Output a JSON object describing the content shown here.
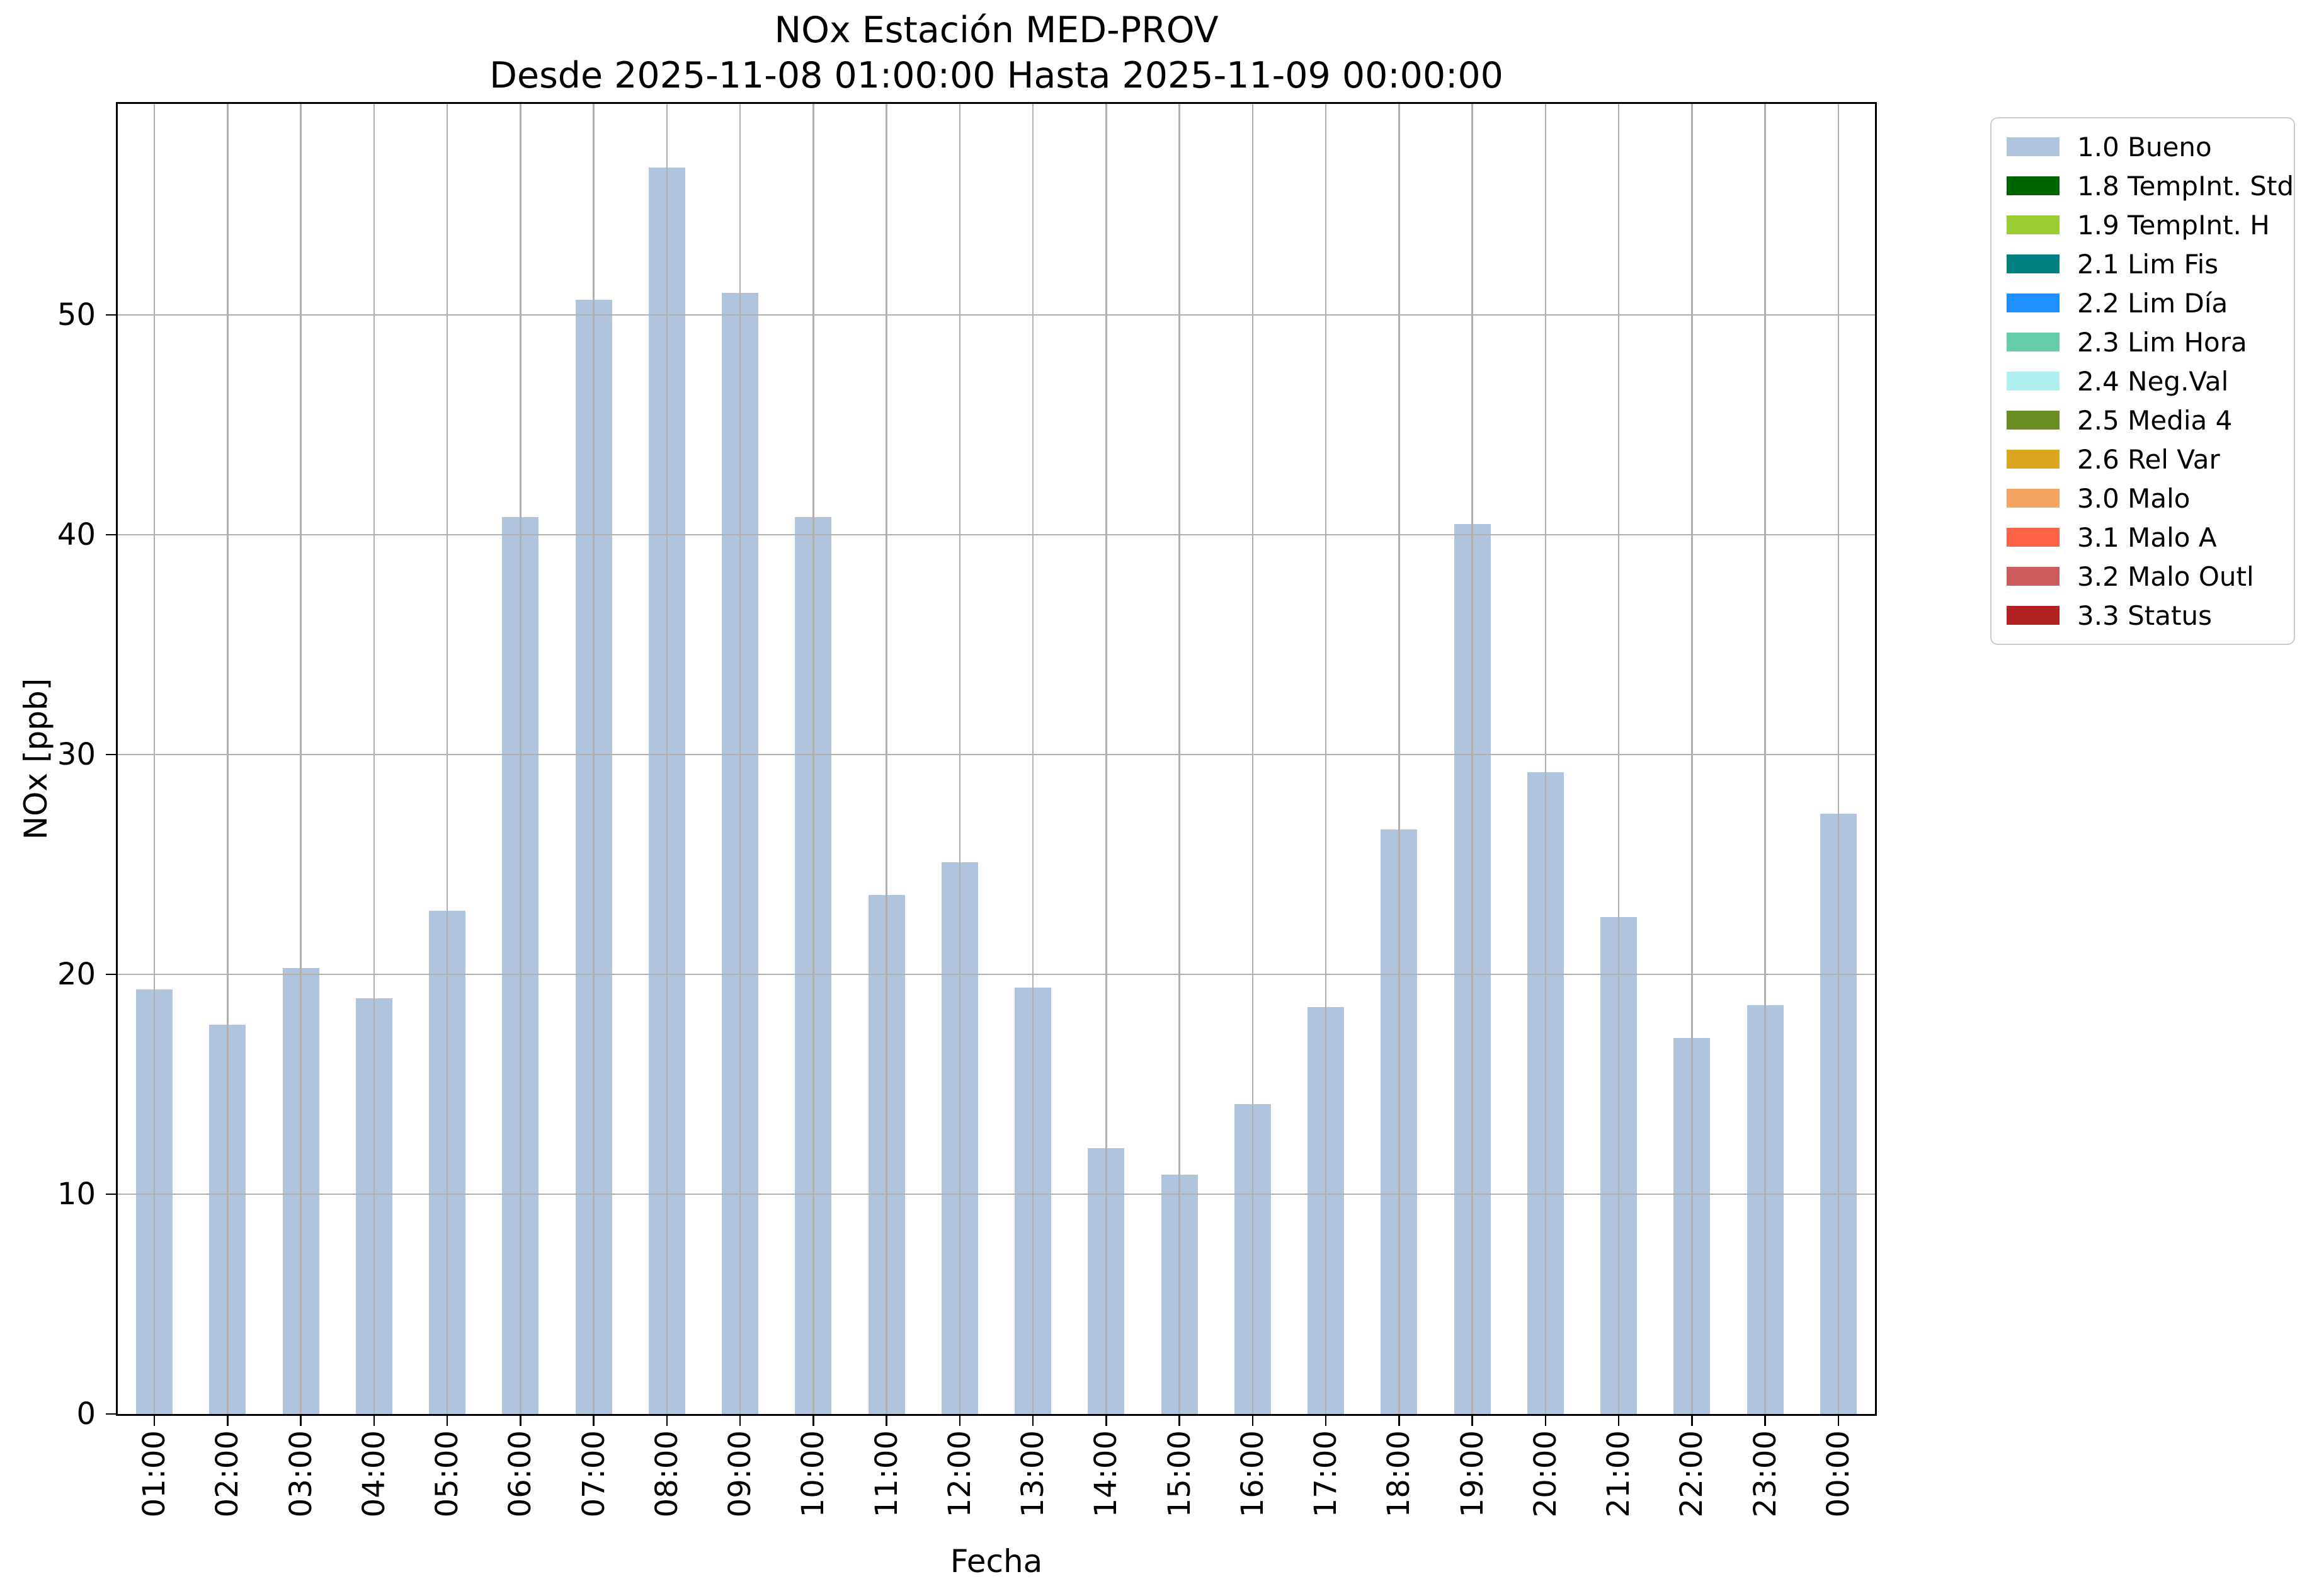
{
  "chart_data": {
    "type": "bar",
    "title": "NOx Estación MED-PROV",
    "subtitle": "Desde 2025-11-08 01:00:00 Hasta 2025-11-09 00:00:00",
    "xlabel": "Fecha",
    "ylabel": "NOx [ppb]",
    "categories": [
      "01:00",
      "02:00",
      "03:00",
      "04:00",
      "05:00",
      "06:00",
      "07:00",
      "08:00",
      "09:00",
      "10:00",
      "11:00",
      "12:00",
      "13:00",
      "14:00",
      "15:00",
      "16:00",
      "17:00",
      "18:00",
      "19:00",
      "20:00",
      "21:00",
      "22:00",
      "23:00",
      "00:00"
    ],
    "values": [
      19.3,
      17.7,
      20.3,
      18.9,
      22.9,
      40.8,
      50.7,
      56.7,
      51.0,
      40.8,
      23.6,
      25.1,
      19.4,
      12.1,
      10.9,
      14.1,
      18.5,
      26.6,
      40.5,
      29.2,
      22.6,
      17.1,
      18.6,
      27.3
    ],
    "bar_color": "#b0c4de",
    "ylim": [
      0,
      59.6
    ],
    "yticks": [
      0,
      10,
      20,
      30,
      40,
      50
    ],
    "grid": true,
    "legend_position": "outside-right",
    "legend": [
      {
        "label": "1.0 Bueno",
        "color": "#b0c4de"
      },
      {
        "label": "1.8 TempInt. Std",
        "color": "#006400"
      },
      {
        "label": "1.9 TempInt. H",
        "color": "#9acd32"
      },
      {
        "label": "2.1 Lim Fis",
        "color": "#008080"
      },
      {
        "label": "2.2 Lim Día",
        "color": "#1e90ff"
      },
      {
        "label": "2.3 Lim Hora",
        "color": "#66cdaa"
      },
      {
        "label": "2.4 Neg.Val",
        "color": "#afeeee"
      },
      {
        "label": "2.5 Media 4",
        "color": "#6b8e23"
      },
      {
        "label": "2.6 Rel Var",
        "color": "#daa520"
      },
      {
        "label": "3.0 Malo",
        "color": "#f4a460"
      },
      {
        "label": "3.1 Malo A",
        "color": "#ff6347"
      },
      {
        "label": "3.2 Malo Outl",
        "color": "#cd5c5c"
      },
      {
        "label": "3.3 Status",
        "color": "#b22222"
      }
    ]
  }
}
